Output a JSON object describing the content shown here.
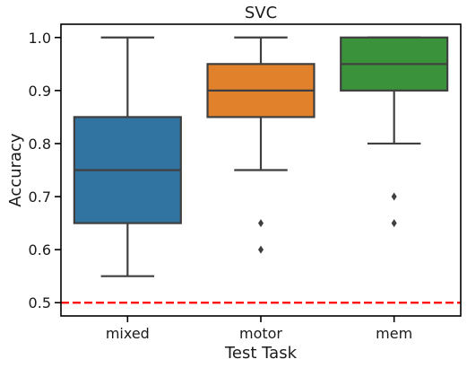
{
  "chart_data": {
    "type": "box",
    "title": "SVC",
    "xlabel": "Test Task",
    "ylabel": "Accuracy",
    "ylim": [
      0.475,
      1.025
    ],
    "yticks": [
      0.5,
      0.6,
      0.7,
      0.8,
      0.9,
      1.0
    ],
    "ytick_labels": [
      "0.5",
      "0.6",
      "0.7",
      "0.8",
      "0.9",
      "1.0"
    ],
    "categories": [
      "mixed",
      "motor",
      "mem"
    ],
    "boxes": [
      {
        "category": "mixed",
        "whisker_low": 0.55,
        "q1": 0.65,
        "median": 0.75,
        "q3": 0.85,
        "whisker_high": 1.0,
        "outliers": [],
        "color": "#3274a1"
      },
      {
        "category": "motor",
        "whisker_low": 0.75,
        "q1": 0.85,
        "median": 0.9,
        "q3": 0.95,
        "whisker_high": 1.0,
        "outliers": [
          0.65,
          0.6
        ],
        "color": "#e1812c"
      },
      {
        "category": "mem",
        "whisker_low": 0.8,
        "q1": 0.9,
        "median": 0.95,
        "q3": 1.0,
        "whisker_high": 1.0,
        "outliers": [
          0.7,
          0.65
        ],
        "color": "#3a923a"
      }
    ],
    "reference_line": {
      "y": 0.5,
      "color": "#ff0000",
      "style": "dashed"
    },
    "grid": false,
    "box_edge_color": "#3f3f3f"
  }
}
